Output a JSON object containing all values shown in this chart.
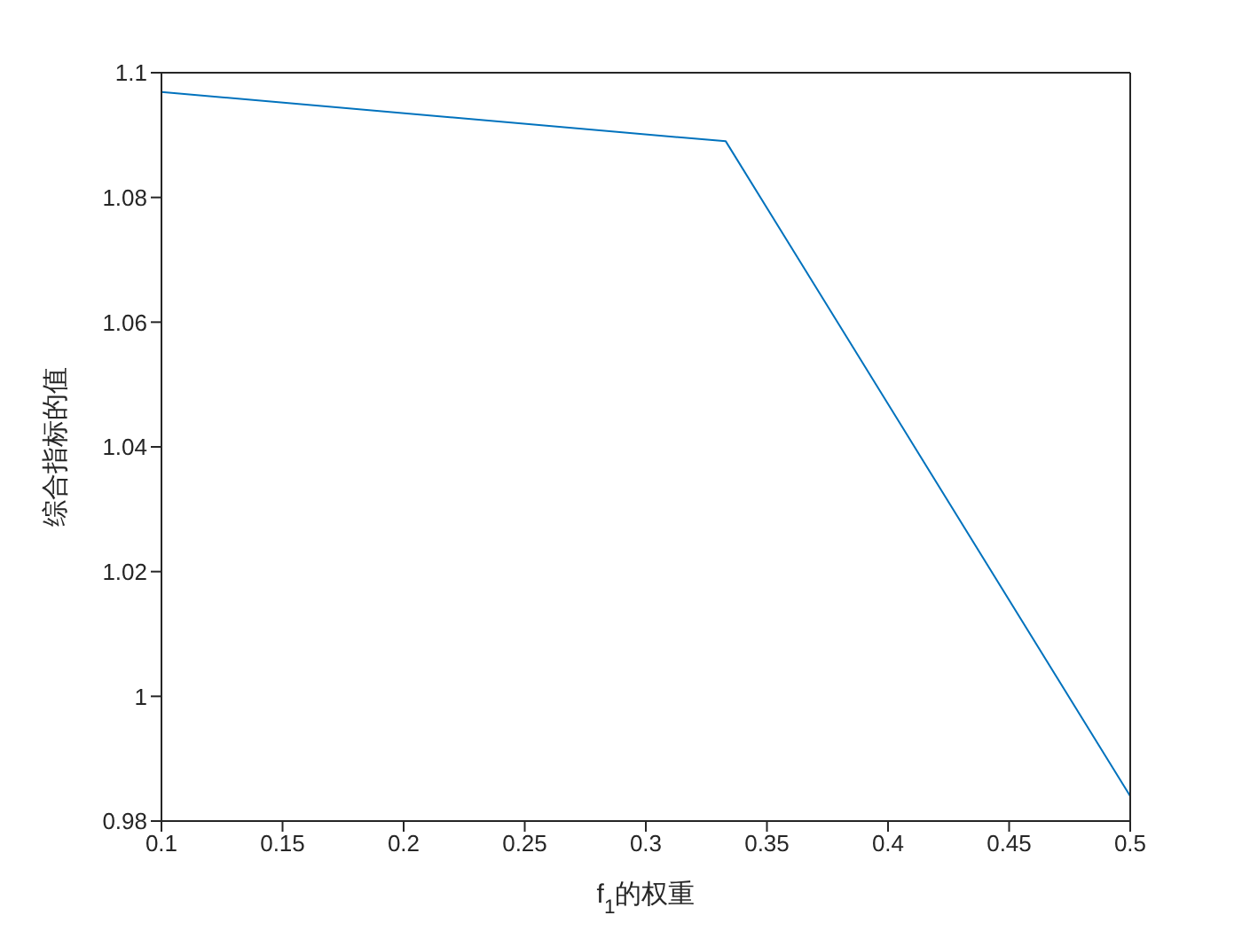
{
  "chart_data": {
    "type": "line",
    "xlabel": "f$_{1}$的权重",
    "ylabel": "综合指标的值",
    "x": [
      0.1,
      0.333,
      0.5
    ],
    "series": [
      {
        "color": "#0072bd",
        "values": [
          1.0969,
          1.089,
          0.984
        ]
      }
    ],
    "xlim": [
      0.1,
      0.5
    ],
    "xticks": [
      0.1,
      0.15,
      0.2,
      0.25,
      0.3,
      0.35,
      0.4,
      0.45,
      0.5
    ],
    "ylim": [
      0.98,
      1.1
    ],
    "yticks": [
      0.98,
      1,
      1.02,
      1.04,
      1.06,
      1.08,
      1.1
    ],
    "grid": false,
    "legend": false,
    "marker": "none",
    "line_style": "solid"
  }
}
